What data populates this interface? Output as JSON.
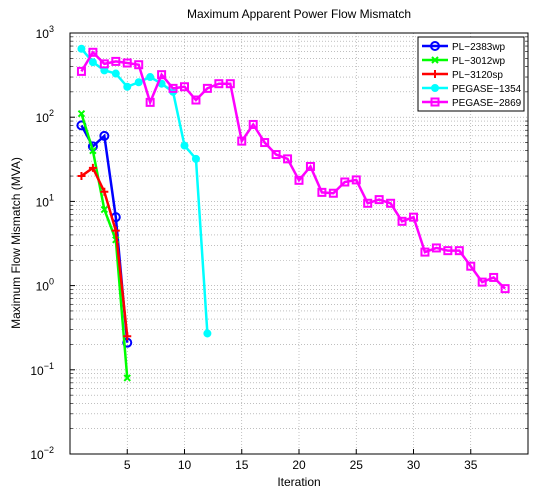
{
  "chart_data": {
    "type": "line",
    "title": "Maximum Apparent Power Flow Mismatch",
    "xlabel": "Iteration",
    "ylabel": "Maximum Flow Mismatch (MVA)",
    "xlim": [
      0,
      40
    ],
    "xticks": [
      5,
      10,
      15,
      20,
      25,
      30,
      35
    ],
    "ylim": [
      0.01,
      1000
    ],
    "ylog": true,
    "grid": true,
    "legend": "upper right",
    "yticks": [
      {
        "value": 0.01,
        "label": "10",
        "exponent": "−2"
      },
      {
        "value": 0.1,
        "label": "10",
        "exponent": "−1"
      },
      {
        "value": 1,
        "label": "10",
        "exponent": "0"
      },
      {
        "value": 10,
        "label": "10",
        "exponent": "1"
      },
      {
        "value": 100,
        "label": "10",
        "exponent": "2"
      },
      {
        "value": 1000,
        "label": "10",
        "exponent": "3"
      }
    ],
    "series": [
      {
        "name": "PL−2383wp",
        "color": "#0000ff",
        "marker": "circle",
        "x": [
          1,
          2,
          3,
          4,
          5
        ],
        "values": [
          80,
          45,
          60,
          6.5,
          0.21
        ]
      },
      {
        "name": "PL−3012wp",
        "color": "#00ff00",
        "marker": "x",
        "x": [
          1,
          2,
          3,
          4,
          5
        ],
        "values": [
          110,
          40,
          8,
          3.5,
          0.08
        ]
      },
      {
        "name": "PL−3120sp",
        "color": "#ff0000",
        "marker": "plus",
        "x": [
          1,
          2,
          3,
          4,
          5
        ],
        "values": [
          20,
          25,
          13,
          4.5,
          0.25
        ]
      },
      {
        "name": "PEGASE−1354",
        "color": "#00ffff",
        "marker": "star",
        "x": [
          1,
          2,
          3,
          4,
          5,
          6,
          7,
          8,
          9,
          10,
          11,
          12
        ],
        "values": [
          650,
          450,
          360,
          330,
          230,
          260,
          300,
          250,
          200,
          46,
          32,
          0.27
        ]
      },
      {
        "name": "PEGASE−2869",
        "color": "#ff00ff",
        "marker": "square",
        "x": [
          1,
          2,
          3,
          4,
          5,
          6,
          7,
          8,
          9,
          10,
          11,
          12,
          13,
          14,
          15,
          16,
          17,
          18,
          19,
          20,
          21,
          22,
          23,
          24,
          25,
          26,
          27,
          28,
          29,
          30,
          31,
          32,
          33,
          34,
          35,
          36,
          37,
          38
        ],
        "values": [
          350,
          590,
          430,
          460,
          440,
          420,
          150,
          320,
          220,
          230,
          160,
          220,
          250,
          250,
          52,
          82,
          50,
          36,
          32,
          17.8,
          26,
          12.8,
          12.5,
          17,
          18,
          9.5,
          10.5,
          9.5,
          5.8,
          6.5,
          2.5,
          2.8,
          2.6,
          2.6,
          1.7,
          1.1,
          1.25,
          0.92
        ]
      }
    ]
  }
}
